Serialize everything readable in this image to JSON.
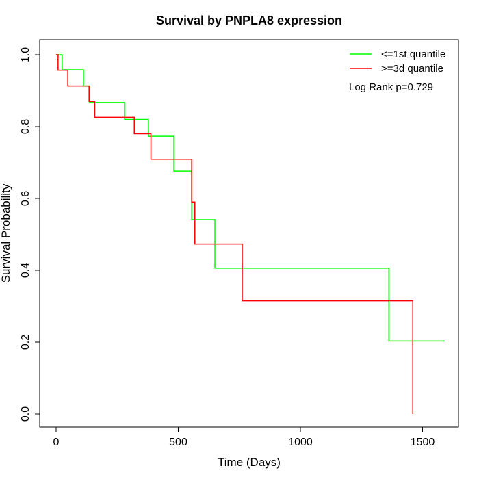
{
  "chart_data": {
    "type": "line",
    "title": "Survival by PNPLA8 expression",
    "xlabel": "Time (Days)",
    "ylabel": "Survival Probability",
    "xlim": [
      0,
      1600
    ],
    "ylim": [
      0,
      1
    ],
    "x_ticks": [
      0,
      500,
      1000,
      1500
    ],
    "y_ticks": [
      0.0,
      0.2,
      0.4,
      0.6,
      0.8,
      1.0
    ],
    "x_tick_labels": [
      "0",
      "500",
      "1000",
      "1500"
    ],
    "y_tick_labels": [
      "0.0",
      "0.2",
      "0.4",
      "0.6",
      "0.8",
      "1.0"
    ],
    "grid": false,
    "legend_position": "top-right",
    "annotation": "Log Rank p=0.729",
    "series": [
      {
        "name": "<=1st quantile",
        "color": "#00ff00",
        "step": true,
        "points": [
          [
            0,
            1.0
          ],
          [
            25,
            0.958
          ],
          [
            112,
            0.913
          ],
          [
            137,
            0.867
          ],
          [
            280,
            0.82
          ],
          [
            378,
            0.773
          ],
          [
            482,
            0.676
          ],
          [
            555,
            0.541
          ],
          [
            650,
            0.406
          ],
          [
            1362,
            0.203
          ],
          [
            1590,
            0.203
          ]
        ]
      },
      {
        "name": ">=3d quantile",
        "color": "#ff0000",
        "step": true,
        "points": [
          [
            0,
            1.0
          ],
          [
            8,
            0.957
          ],
          [
            48,
            0.913
          ],
          [
            135,
            0.87
          ],
          [
            158,
            0.826
          ],
          [
            320,
            0.78
          ],
          [
            388,
            0.709
          ],
          [
            555,
            0.59
          ],
          [
            568,
            0.473
          ],
          [
            762,
            0.315
          ],
          [
            1460,
            0.0
          ]
        ]
      }
    ]
  }
}
